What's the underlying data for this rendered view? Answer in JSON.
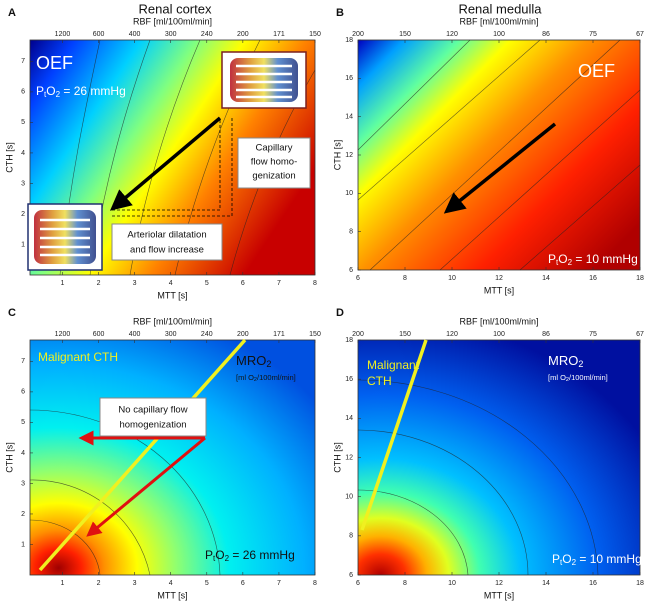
{
  "figure": {
    "title_left": "Renal cortex",
    "title_right": "Renal medulla"
  },
  "chart_data": [
    {
      "type": "heatmap",
      "panel": "A",
      "top_axis_label": "RBF [ml/100ml/min]",
      "x_label": "MTT [s]",
      "y_label": "CTH [s]",
      "xlim": [
        0.1,
        8
      ],
      "ylim": [
        0,
        7.7
      ],
      "xticks": [
        1,
        2,
        3,
        4,
        5,
        6,
        7,
        8
      ],
      "yticks": [
        1,
        2,
        3,
        4,
        5,
        6,
        7
      ],
      "x2ticks": [
        {
          "value": 1,
          "label": "1200"
        },
        {
          "value": 2,
          "label": "600"
        },
        {
          "value": 3,
          "label": "400"
        },
        {
          "value": 4,
          "label": "300"
        },
        {
          "value": 5,
          "label": "240"
        },
        {
          "value": 6,
          "label": "200"
        },
        {
          "value": 7,
          "label": "171"
        },
        {
          "value": 8,
          "label": "150"
        }
      ],
      "map_label": "OEF",
      "pto2": {
        "p": "P",
        "t": "t",
        "o": "O",
        "two": "2",
        "rest": " = 26 mmHg"
      },
      "annotations": {
        "homogenization": [
          "Capillary",
          "flow homo-",
          "genization"
        ],
        "dilatation": [
          "Arteriolar dilatation",
          "and flow increase"
        ]
      }
    },
    {
      "type": "heatmap",
      "panel": "B",
      "top_axis_label": "RBF [ml/100ml/min]",
      "x_label": "MTT [s]",
      "y_label": "CTH [s]",
      "xlim": [
        6,
        18
      ],
      "ylim": [
        6,
        18
      ],
      "xticks": [
        6,
        8,
        10,
        12,
        14,
        16,
        18
      ],
      "yticks": [
        6,
        8,
        10,
        12,
        14,
        16,
        18
      ],
      "x2ticks": [
        {
          "value": 6,
          "label": "200"
        },
        {
          "value": 8,
          "label": "150"
        },
        {
          "value": 10,
          "label": "120"
        },
        {
          "value": 12,
          "label": "100"
        },
        {
          "value": 14,
          "label": "86"
        },
        {
          "value": 16,
          "label": "75"
        },
        {
          "value": 18,
          "label": "67"
        }
      ],
      "map_label": "OEF",
      "pto2": {
        "p": "P",
        "t": "t",
        "o": "O",
        "two": "2",
        "rest": " = 10 mmHg"
      }
    },
    {
      "type": "heatmap",
      "panel": "C",
      "top_axis_label": "RBF [ml/100ml/min]",
      "x_label": "MTT [s]",
      "y_label": "CTH [s]",
      "xlim": [
        0.1,
        8
      ],
      "ylim": [
        0,
        7.7
      ],
      "xticks": [
        1,
        2,
        3,
        4,
        5,
        6,
        7,
        8
      ],
      "yticks": [
        1,
        2,
        3,
        4,
        5,
        6,
        7
      ],
      "x2ticks": [
        {
          "value": 1,
          "label": "1200"
        },
        {
          "value": 2,
          "label": "600"
        },
        {
          "value": 3,
          "label": "400"
        },
        {
          "value": 4,
          "label": "300"
        },
        {
          "value": 5,
          "label": "240"
        },
        {
          "value": 6,
          "label": "200"
        },
        {
          "value": 7,
          "label": "171"
        },
        {
          "value": 8,
          "label": "150"
        }
      ],
      "map_label": {
        "m": "MRO",
        "two": "2",
        "unit_a": "[ml O",
        "unit_two": "2",
        "unit_b": "/100ml/min]"
      },
      "pto2": {
        "p": "P",
        "t": "t",
        "o": "O",
        "two": "2",
        "rest": " = 26 mmHg"
      },
      "malignant": "Malignant CTH",
      "annotations": {
        "no_homogenization": [
          "No capillary flow",
          "homogenization"
        ]
      }
    },
    {
      "type": "heatmap",
      "panel": "D",
      "top_axis_label": "RBF [ml/100ml/min]",
      "x_label": "MTT [s]",
      "y_label": "CTH [s]",
      "xlim": [
        6,
        18
      ],
      "ylim": [
        6,
        18
      ],
      "xticks": [
        6,
        8,
        10,
        12,
        14,
        16,
        18
      ],
      "yticks": [
        6,
        8,
        10,
        12,
        14,
        16,
        18
      ],
      "x2ticks": [
        {
          "value": 6,
          "label": "200"
        },
        {
          "value": 8,
          "label": "150"
        },
        {
          "value": 10,
          "label": "120"
        },
        {
          "value": 12,
          "label": "100"
        },
        {
          "value": 14,
          "label": "86"
        },
        {
          "value": 16,
          "label": "75"
        },
        {
          "value": 18,
          "label": "67"
        }
      ],
      "map_label": {
        "m": "MRO",
        "two": "2",
        "unit_a": "[ml O",
        "unit_two": "2",
        "unit_b": "/100ml/min]"
      },
      "pto2": {
        "p": "P",
        "t": "t",
        "o": "O",
        "two": "2",
        "rest": " = 10 mmHg"
      },
      "malignant": [
        "Malignant",
        "CTH"
      ]
    }
  ]
}
